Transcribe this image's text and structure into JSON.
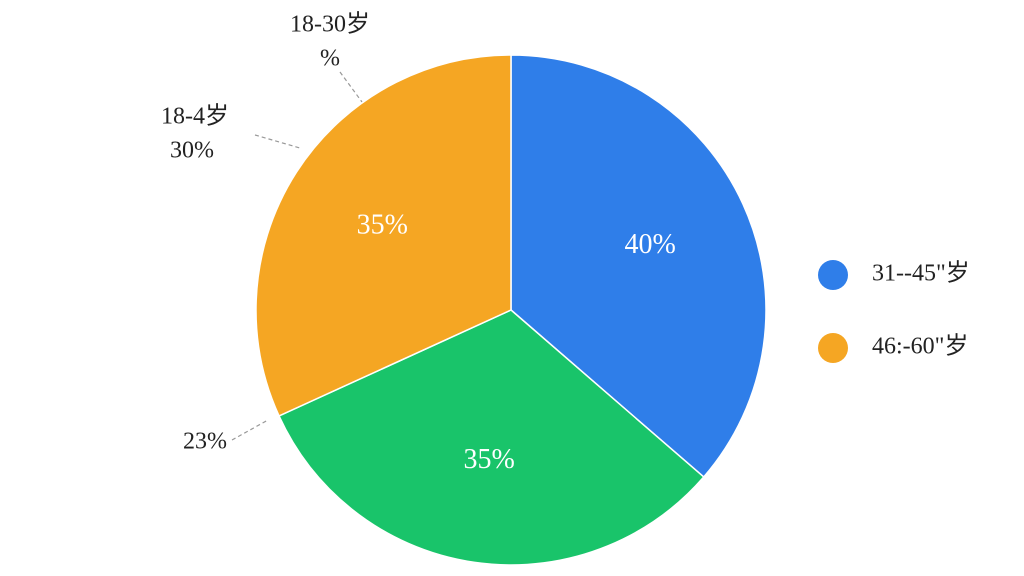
{
  "chart_data": {
    "type": "pie",
    "categories": [
      "31--45\"岁",
      null,
      "46:-60\"岁"
    ],
    "values": [
      40,
      35,
      35
    ],
    "value_labels": [
      "40%",
      "35%",
      "35%"
    ],
    "colors": [
      "#2f7ee9",
      "#19c46a",
      "#f5a623"
    ],
    "annotations": [
      "18-30岁",
      "%",
      "18-4岁",
      "30%",
      "23%"
    ]
  }
}
